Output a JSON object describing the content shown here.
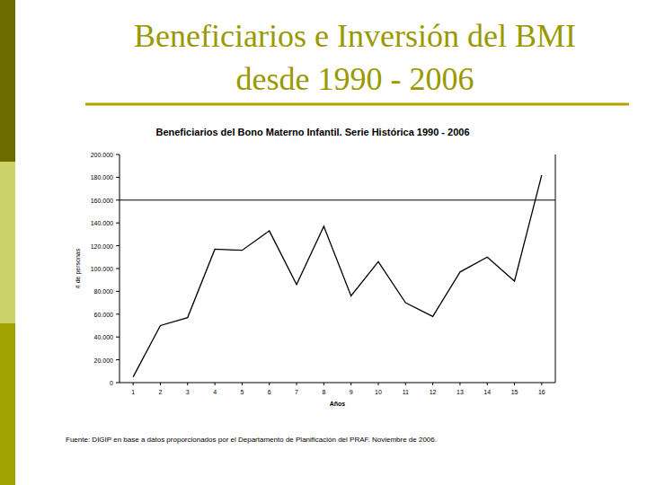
{
  "slide_title": "Beneficiarios e Inversión del BMI desde 1990 - 2006",
  "chart_data": {
    "type": "line",
    "title": "Beneficiarios del Bono Materno Infantil. Serie Histórica 1990 - 2006",
    "x_label": "Años",
    "y_label": "# de personas",
    "categories": [
      "1",
      "2",
      "3",
      "4",
      "5",
      "6",
      "7",
      "8",
      "9",
      "10",
      "11",
      "12",
      "13",
      "14",
      "15",
      "16"
    ],
    "values": [
      5000,
      50000,
      57000,
      117000,
      116000,
      133000,
      86000,
      137000,
      76000,
      106000,
      70000,
      58000,
      97000,
      110000,
      89000,
      182000
    ],
    "color": "#000000",
    "ylim": [
      0,
      200000
    ],
    "yticks": [
      0,
      {
        "value": 20000,
        "label": "20.000"
      },
      {
        "value": 40000,
        "label": "40.000"
      },
      {
        "value": 60000,
        "label": "60.000"
      },
      {
        "value": 80000,
        "label": "80.000"
      },
      {
        "value": 100000,
        "label": "100.000"
      },
      {
        "value": 120000,
        "label": "120.000"
      },
      {
        "value": 140000,
        "label": "140.000"
      },
      {
        "value": 160000,
        "label": "160.000"
      },
      {
        "value": 180000,
        "label": "180.000"
      },
      {
        "value": 200000,
        "label": "200.000"
      }
    ],
    "reference_line": 160000,
    "grid": false,
    "source": "Fuente: DIGIP en base a datos proporcionados por el Departamento de Planificación del PRAF. Noviembre de 2006."
  }
}
